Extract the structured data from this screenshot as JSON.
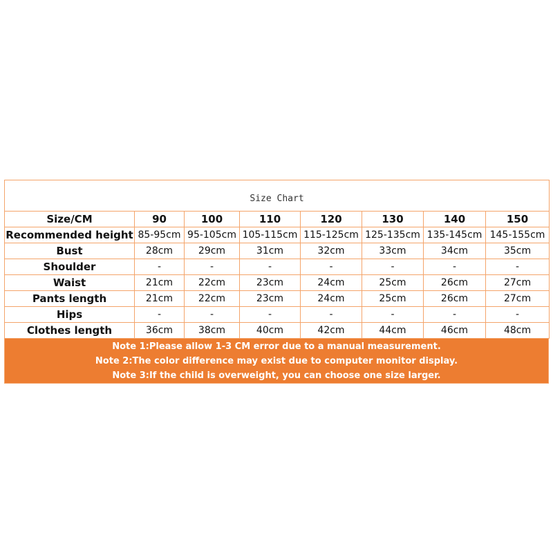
{
  "title": "Size Chart",
  "header": [
    "Size/CM",
    "90",
    "100",
    "110",
    "120",
    "130",
    "140",
    "150"
  ],
  "rows": [
    [
      "Recommended height",
      "85-95cm",
      "95-105cm",
      "105-115cm",
      "115-125cm",
      "125-135cm",
      "135-145cm",
      "145-155cm"
    ],
    [
      "Bust",
      "28cm",
      "29cm",
      "31cm",
      "32cm",
      "33cm",
      "34cm",
      "35cm"
    ],
    [
      "Shoulder",
      "-",
      "-",
      "-",
      "-",
      "-",
      "-",
      "-"
    ],
    [
      "Waist",
      "21cm",
      "22cm",
      "23cm",
      "24cm",
      "25cm",
      "26cm",
      "27cm"
    ],
    [
      "Pants length",
      "21cm",
      "22cm",
      "23cm",
      "24cm",
      "25cm",
      "26cm",
      "27cm"
    ],
    [
      "Hips",
      "-",
      "-",
      "-",
      "-",
      "-",
      "-",
      "-"
    ],
    [
      "Clothes length",
      "36cm",
      "38cm",
      "40cm",
      "42cm",
      "44cm",
      "46cm",
      "48cm"
    ]
  ],
  "notes": [
    "Note 1:Please allow 1-3 CM error due to a manual measurement.",
    "Note 2:The color difference may exist due to computer monitor display.",
    "Note 3:If the child is overweight, you can choose one size larger."
  ],
  "colors": {
    "border": "#f4a46a",
    "notes_bg": "#ed7d31"
  }
}
